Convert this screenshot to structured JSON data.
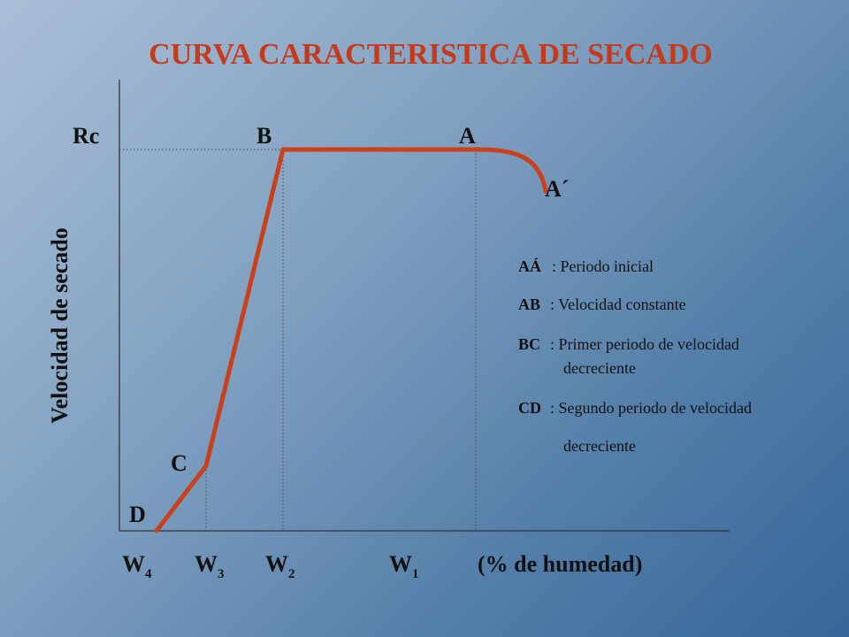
{
  "chart_data": {
    "type": "line",
    "title": "CURVA CARACTERISTICA DE SECADO",
    "ylabel": "Velocidad de secado",
    "xlabel": "(% de humedad)",
    "x_ticks": [
      {
        "id": "W4",
        "base": "W",
        "sub": "4"
      },
      {
        "id": "W3",
        "base": "W",
        "sub": "3"
      },
      {
        "id": "W2",
        "base": "W",
        "sub": "2"
      },
      {
        "id": "W1",
        "base": "W",
        "sub": "1"
      }
    ],
    "y_ticks": [
      {
        "id": "Rc",
        "label": "Rc"
      }
    ],
    "points": [
      {
        "id": "D",
        "label": "D",
        "x": "W4",
        "y": 0
      },
      {
        "id": "C",
        "label": "C",
        "x": "W3",
        "y": 0.17
      },
      {
        "id": "B",
        "label": "B",
        "x": "W2",
        "y": "Rc"
      },
      {
        "id": "A",
        "label": "A",
        "x": "W1",
        "y": "Rc"
      },
      {
        "id": "A2",
        "label": "A´"
      }
    ],
    "legend": [
      {
        "key": "AÁ",
        "text": ": Periodo inicial"
      },
      {
        "key": "AB",
        "text": ": Velocidad constante"
      },
      {
        "key": "BC",
        "text": ": Primer periodo de velocidad",
        "cont": "decreciente"
      },
      {
        "key": "CD",
        "text": ": Segundo periodo de velocidad",
        "cont": "decreciente"
      }
    ],
    "colors": {
      "curve": "#c8401c",
      "title": "#c43a1a"
    },
    "grid": false,
    "legend_position": "right"
  }
}
